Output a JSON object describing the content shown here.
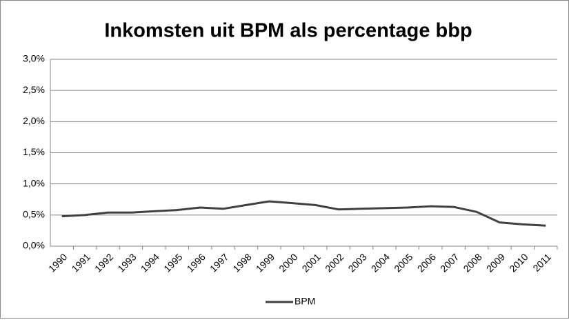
{
  "chart_data": {
    "type": "line",
    "title": "Inkomsten uit BPM als percentage bbp",
    "categories": [
      "1990",
      "1991",
      "1992",
      "1993",
      "1994",
      "1995",
      "1996",
      "1997",
      "1998",
      "1999",
      "2000",
      "2001",
      "2002",
      "2003",
      "2004",
      "2005",
      "2006",
      "2007",
      "2008",
      "2009",
      "2010",
      "2011"
    ],
    "series": [
      {
        "name": "BPM",
        "color": "#404040",
        "values": [
          0.48,
          0.5,
          0.54,
          0.54,
          0.56,
          0.58,
          0.62,
          0.6,
          0.66,
          0.72,
          0.69,
          0.66,
          0.59,
          0.6,
          0.61,
          0.62,
          0.64,
          0.63,
          0.55,
          0.38,
          0.35,
          0.33
        ]
      }
    ],
    "ylim": [
      0,
      3
    ],
    "yticks": [
      {
        "value": 0,
        "label": "0,0%"
      },
      {
        "value": 0.5,
        "label": "0,5%"
      },
      {
        "value": 1,
        "label": "1,0%"
      },
      {
        "value": 1.5,
        "label": "1,5%"
      },
      {
        "value": 2,
        "label": "2,0%"
      },
      {
        "value": 2.5,
        "label": "2,5%"
      },
      {
        "value": 3,
        "label": "3,0%"
      }
    ],
    "grid": true,
    "legend": "bottom"
  }
}
